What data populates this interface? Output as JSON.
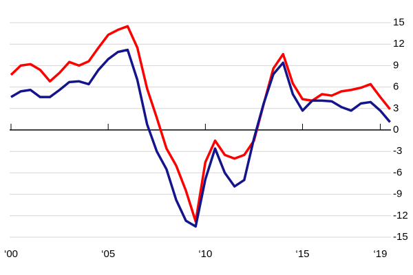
{
  "chart_data": {
    "type": "line",
    "x": [
      2000,
      2000.5,
      2001,
      2001.5,
      2002,
      2002.5,
      2003,
      2003.5,
      2004,
      2004.5,
      2005,
      2005.5,
      2006,
      2006.5,
      2007,
      2007.5,
      2008,
      2008.5,
      2009,
      2009.5,
      2010,
      2010.5,
      2011,
      2011.5,
      2012,
      2012.5,
      2013,
      2013.5,
      2014,
      2014.5,
      2015,
      2015.5,
      2016,
      2016.5,
      2017,
      2017.5,
      2018,
      2018.5,
      2019,
      2019.5
    ],
    "series": [
      {
        "color": "#ff0000",
        "values": [
          7.7,
          9,
          9.2,
          8.4,
          6.8,
          8,
          9.5,
          9,
          9.6,
          11.5,
          13.3,
          14,
          14.5,
          11.5,
          5.8,
          1.7,
          -2.6,
          -5,
          -8.5,
          -12.8,
          -4.5,
          -1.5,
          -3.5,
          -4,
          -3.5,
          -1.5,
          3.6,
          8.6,
          10.6,
          6.5,
          4.3,
          4.1,
          5,
          4.8,
          5.4,
          5.6,
          5.9,
          6.4,
          4.6,
          2.9
        ]
      },
      {
        "color": "#14148c",
        "values": [
          4.6,
          5.4,
          5.6,
          4.6,
          4.6,
          5.6,
          6.7,
          6.8,
          6.4,
          8.4,
          9.9,
          10.9,
          11.2,
          7,
          0.8,
          -3,
          -5.5,
          -9.8,
          -12.7,
          -13.5,
          -6.9,
          -2.6,
          -6,
          -7.9,
          -7,
          -1.2,
          3.7,
          7.8,
          9.4,
          5,
          2.7,
          4.1,
          4.1,
          4,
          3.2,
          2.7,
          3.7,
          3.9,
          2.7,
          1.1
        ]
      }
    ],
    "xlim": [
      2000,
      2019.55
    ],
    "xticks": [
      {
        "value": 2000,
        "label": "‘00"
      },
      {
        "value": 2005,
        "label": "‘05"
      },
      {
        "value": 2010,
        "label": "‘10"
      },
      {
        "value": 2015,
        "label": "‘15"
      },
      {
        "value": 2019,
        "label": "‘19"
      }
    ],
    "ylim": [
      -15,
      15
    ],
    "yticks": [
      15,
      12,
      9,
      6,
      3,
      0,
      -3,
      -6,
      -9,
      -12,
      -15
    ],
    "grid": true
  }
}
